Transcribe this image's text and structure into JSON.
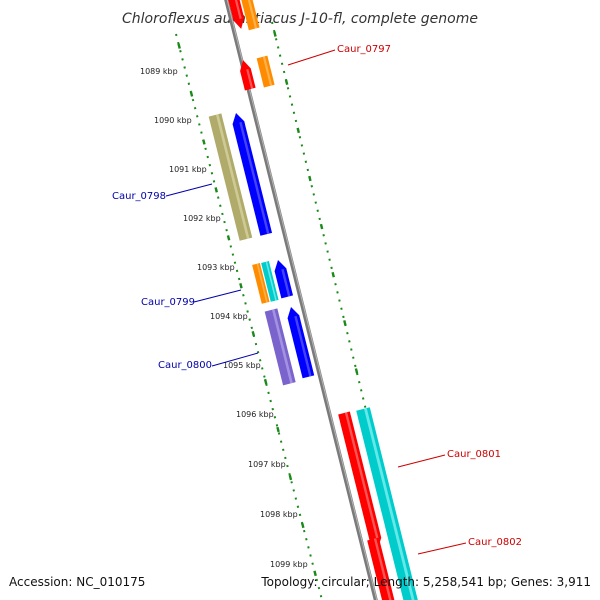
{
  "header": {
    "title": "Chloroflexus aurantiacus J-10-fl, complete genome"
  },
  "footer": {
    "accession": "Accession: NC_010175",
    "topology": "Topology: circular; Length: 5,258,541 bp; Genes: 3,911"
  },
  "colors": {
    "backbone": "#8c8c8c",
    "tick": "#1a8a1a",
    "forward_label": "#cc0000",
    "reverse_label": "#0000aa"
  },
  "kbp_labels": [
    "1089 kbp",
    "1090 kbp",
    "1091 kbp",
    "1092 kbp",
    "1093 kbp",
    "1094 kbp",
    "1095 kbp",
    "1096 kbp",
    "1097 kbp",
    "1098 kbp",
    "1099 kbp"
  ],
  "gene_labels": [
    {
      "id": "caur-0797",
      "text": "Caur_0797",
      "strand": "forward"
    },
    {
      "id": "caur-0798",
      "text": "Caur_0798",
      "strand": "reverse"
    },
    {
      "id": "caur-0799",
      "text": "Caur_0799",
      "strand": "reverse"
    },
    {
      "id": "caur-0800",
      "text": "Caur_0800",
      "strand": "reverse"
    },
    {
      "id": "caur-0801",
      "text": "Caur_0801",
      "strand": "forward"
    },
    {
      "id": "caur-0802",
      "text": "Caur_0802",
      "strand": "forward"
    }
  ]
}
